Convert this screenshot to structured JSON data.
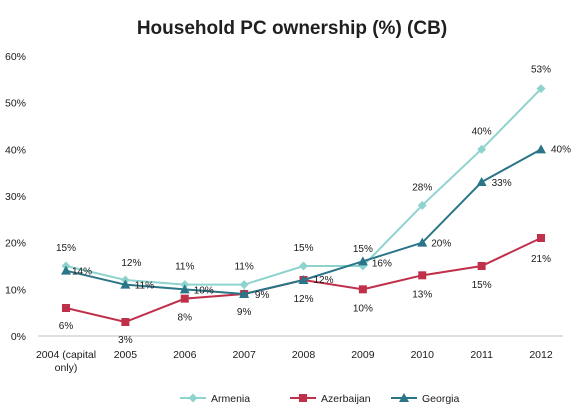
{
  "chart_data": {
    "type": "line",
    "title": "Household PC ownership (%) (CB)",
    "xlabel": "",
    "ylabel": "",
    "categories": [
      "2004 (capital only)",
      "2005",
      "2006",
      "2007",
      "2008",
      "2009",
      "2010",
      "2011",
      "2012"
    ],
    "ylim": [
      0,
      60
    ],
    "yticks": [
      "0%",
      "10%",
      "20%",
      "30%",
      "40%",
      "50%",
      "60%"
    ],
    "grid": false,
    "legend_position": "bottom",
    "series": [
      {
        "name": "Armenia",
        "color": "#8fd3cf",
        "marker": "diamond",
        "values": [
          15,
          12,
          11,
          11,
          15,
          15,
          28,
          40,
          53
        ],
        "labels": [
          "15%",
          "12%",
          "11%",
          "11%",
          "15%",
          "15%",
          "28%",
          "40%",
          "53%"
        ]
      },
      {
        "name": "Azerbaijan",
        "color": "#c0304a",
        "marker": "square",
        "values": [
          6,
          3,
          8,
          9,
          12,
          10,
          13,
          15,
          21
        ],
        "labels": [
          "6%",
          "3%",
          "8%",
          "9%",
          "12%",
          "10%",
          "13%",
          "15%",
          "21%"
        ]
      },
      {
        "name": "Georgia",
        "color": "#2a7587",
        "marker": "triangle",
        "values": [
          14,
          11,
          10,
          9,
          12,
          16,
          20,
          33,
          40
        ],
        "labels": [
          "14%",
          "11%",
          "10%",
          "9%",
          "12%",
          "16%",
          "20%",
          "33%",
          "40%"
        ]
      }
    ]
  }
}
